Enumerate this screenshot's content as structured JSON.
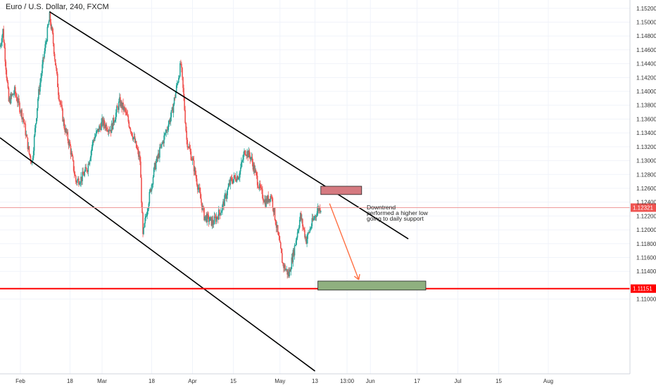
{
  "header": {
    "symbol_title": "Euro / U.S. Dollar, 240, FXCM"
  },
  "annotation": {
    "line1": "Downtrend",
    "line2": "performed a higher low",
    "line3": "going to daily support"
  },
  "colors": {
    "up": "#26a69a",
    "down": "#ef5350",
    "grid": "#f0f3fa",
    "trendline": "#000000",
    "support_line": "#ff0000",
    "current_price_line": "#ef9a9a",
    "resistance_box_fill": "#d57a80",
    "support_box_fill": "#8fb07f",
    "arrow": "#ff7043"
  },
  "chart_data": {
    "type": "candlestick",
    "title": "Euro / U.S. Dollar, 240, FXCM",
    "xlabel": "",
    "ylabel": "",
    "ylim": [
      1.0992,
      1.1532
    ],
    "x_range_days": [
      0,
      216
    ],
    "grid": true,
    "x_ticks": [
      {
        "label": "Feb",
        "day": 7
      },
      {
        "label": "18",
        "day": 24
      },
      {
        "label": "Mar",
        "day": 35
      },
      {
        "label": "18",
        "day": 52
      },
      {
        "label": "Apr",
        "day": 66
      },
      {
        "label": "15",
        "day": 80
      },
      {
        "label": "May",
        "day": 96
      },
      {
        "label": "13",
        "day": 108
      },
      {
        "label": "13:00",
        "day": 119
      },
      {
        "label": "Jun",
        "day": 127
      },
      {
        "label": "17",
        "day": 143
      },
      {
        "label": "Jul",
        "day": 157
      },
      {
        "label": "15",
        "day": 171
      },
      {
        "label": "Aug",
        "day": 188
      }
    ],
    "y_ticks": [
      "1.15200",
      "1.15000",
      "1.14800",
      "1.14600",
      "1.14400",
      "1.14200",
      "1.14000",
      "1.13800",
      "1.13600",
      "1.13400",
      "1.13200",
      "1.13000",
      "1.12800",
      "1.12600",
      "1.12400",
      "1.12200",
      "1.12000",
      "1.11800",
      "1.11600",
      "1.11400",
      "1.11000"
    ],
    "current_price": {
      "label": "1.12321",
      "value": 1.12321
    },
    "support_level": {
      "label": "1.11151",
      "value": 1.11151
    },
    "price_path": [
      {
        "day": 0,
        "price": 1.1465
      },
      {
        "day": 1,
        "price": 1.1488
      },
      {
        "day": 3,
        "price": 1.1385
      },
      {
        "day": 5,
        "price": 1.14
      },
      {
        "day": 8,
        "price": 1.136
      },
      {
        "day": 10,
        "price": 1.131
      },
      {
        "day": 11,
        "price": 1.1298
      },
      {
        "day": 13,
        "price": 1.139
      },
      {
        "day": 15,
        "price": 1.145
      },
      {
        "day": 17,
        "price": 1.1508
      },
      {
        "day": 18,
        "price": 1.148
      },
      {
        "day": 20,
        "price": 1.14
      },
      {
        "day": 22,
        "price": 1.135
      },
      {
        "day": 24,
        "price": 1.132
      },
      {
        "day": 26,
        "price": 1.127
      },
      {
        "day": 28,
        "price": 1.1275
      },
      {
        "day": 30,
        "price": 1.129
      },
      {
        "day": 32,
        "price": 1.133
      },
      {
        "day": 35,
        "price": 1.1355
      },
      {
        "day": 38,
        "price": 1.1345
      },
      {
        "day": 41,
        "price": 1.1385
      },
      {
        "day": 43,
        "price": 1.137
      },
      {
        "day": 46,
        "price": 1.133
      },
      {
        "day": 48,
        "price": 1.13
      },
      {
        "day": 49,
        "price": 1.119
      },
      {
        "day": 50,
        "price": 1.122
      },
      {
        "day": 53,
        "price": 1.129
      },
      {
        "day": 56,
        "price": 1.133
      },
      {
        "day": 59,
        "price": 1.137
      },
      {
        "day": 62,
        "price": 1.144
      },
      {
        "day": 63,
        "price": 1.139
      },
      {
        "day": 64,
        "price": 1.133
      },
      {
        "day": 66,
        "price": 1.13
      },
      {
        "day": 68,
        "price": 1.126
      },
      {
        "day": 70,
        "price": 1.122
      },
      {
        "day": 73,
        "price": 1.121
      },
      {
        "day": 76,
        "price": 1.123
      },
      {
        "day": 79,
        "price": 1.127
      },
      {
        "day": 82,
        "price": 1.128
      },
      {
        "day": 84,
        "price": 1.1315
      },
      {
        "day": 86,
        "price": 1.1305
      },
      {
        "day": 89,
        "price": 1.126
      },
      {
        "day": 91,
        "price": 1.124
      },
      {
        "day": 93,
        "price": 1.125
      },
      {
        "day": 95,
        "price": 1.12
      },
      {
        "day": 97,
        "price": 1.115
      },
      {
        "day": 99,
        "price": 1.1135
      },
      {
        "day": 101,
        "price": 1.1175
      },
      {
        "day": 103,
        "price": 1.122
      },
      {
        "day": 105,
        "price": 1.1185
      },
      {
        "day": 107,
        "price": 1.121
      },
      {
        "day": 109,
        "price": 1.123
      },
      {
        "day": 110,
        "price": 1.1232
      }
    ],
    "series": [
      {
        "kind": "trendline",
        "role": "channel-upper",
        "points": [
          {
            "day": 17,
            "price": 1.1515
          },
          {
            "day": 140,
            "price": 1.1187
          }
        ]
      },
      {
        "kind": "trendline",
        "role": "channel-lower",
        "points": [
          {
            "day": 0,
            "price": 1.1333
          },
          {
            "day": 108,
            "price": 1.0996
          }
        ]
      },
      {
        "kind": "zone",
        "role": "resistance-zone",
        "x": [
          110,
          124
        ],
        "y": [
          1.1251,
          1.1263
        ]
      },
      {
        "kind": "zone",
        "role": "support-zone",
        "x": [
          109,
          146
        ],
        "y": [
          1.1113,
          1.1126
        ]
      },
      {
        "kind": "arrow",
        "role": "projection",
        "from": {
          "day": 113,
          "price": 1.1238
        },
        "to": {
          "day": 123,
          "price": 1.1128
        }
      }
    ]
  }
}
